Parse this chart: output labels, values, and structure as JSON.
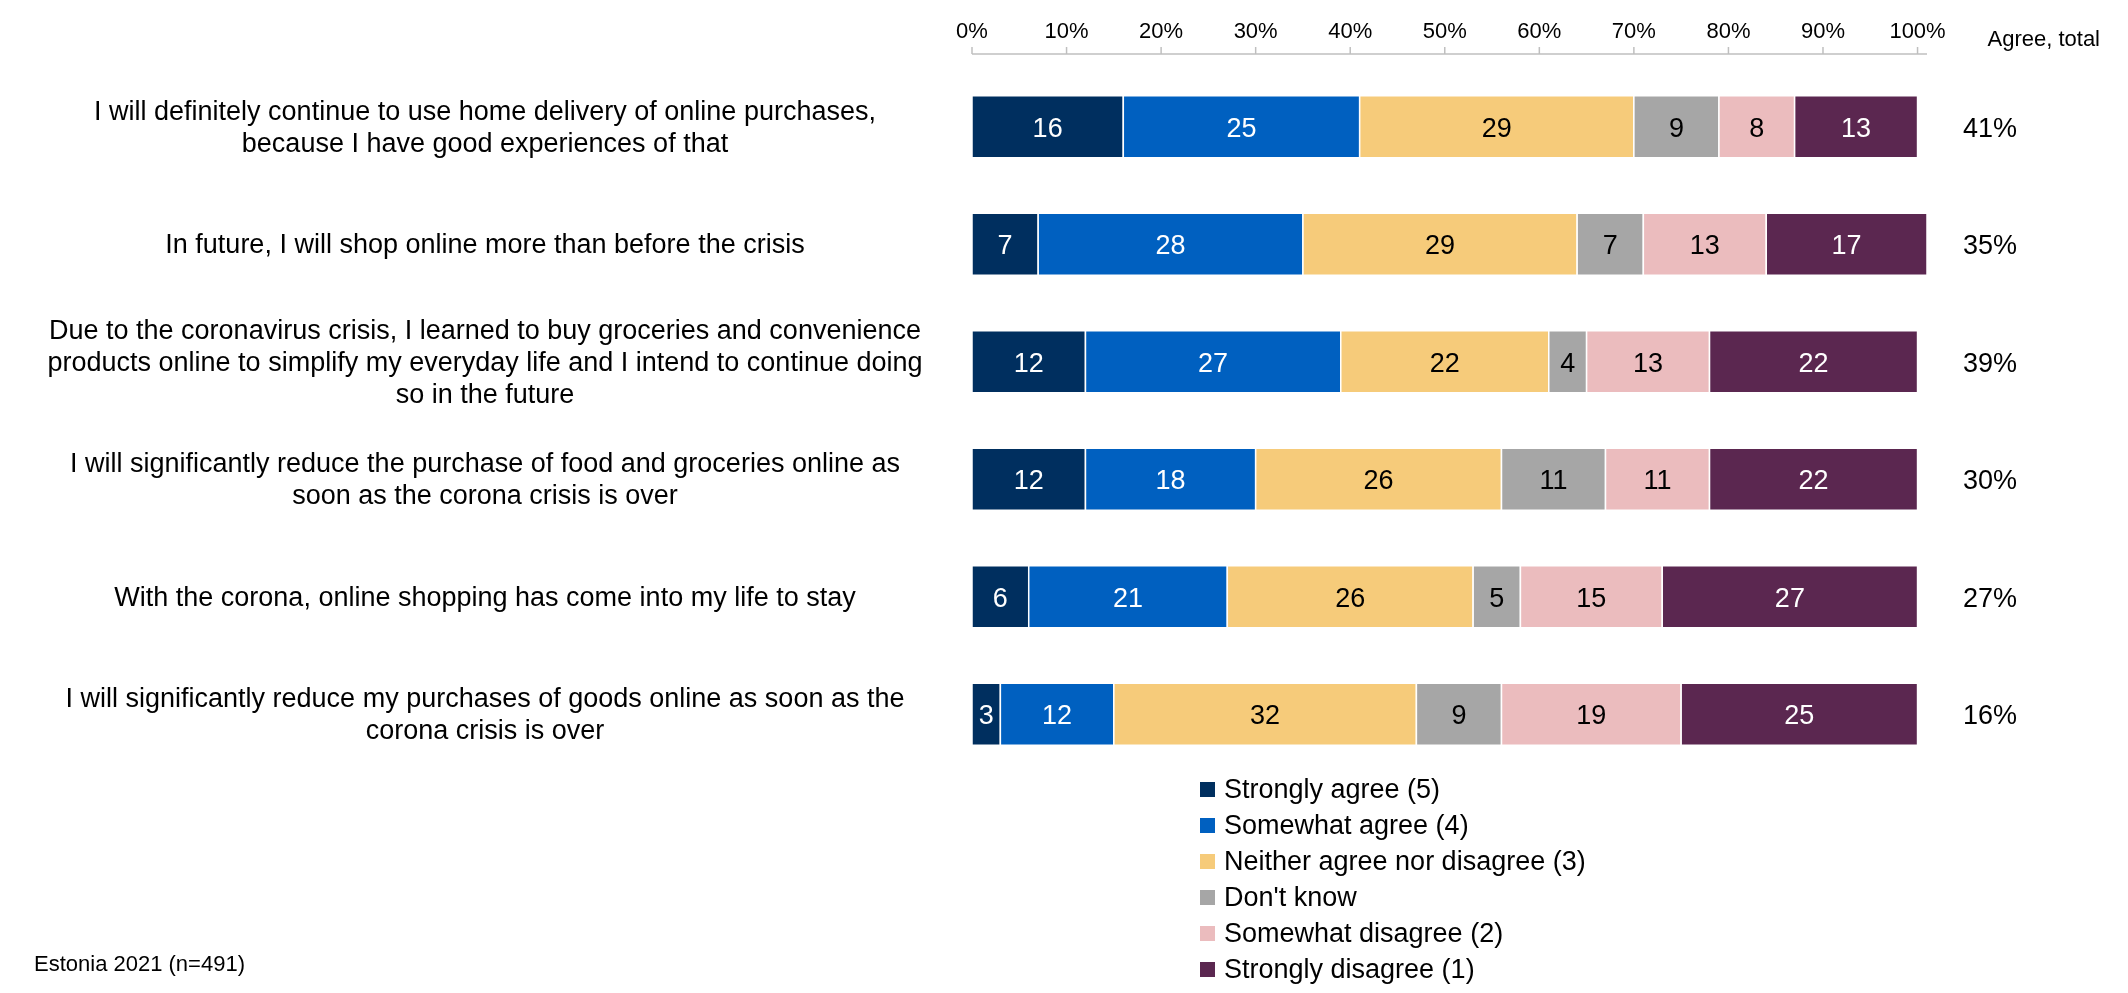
{
  "chart_data": {
    "type": "bar",
    "orientation": "horizontal",
    "stacked": true,
    "data_labels": true,
    "legend": "bottom",
    "grid": false,
    "categories": [
      "I will definitely continue to use home delivery of online purchases, because I have good experiences of that",
      "In future, I will shop online more than before the crisis",
      "Due to the coronavirus crisis, I learned to buy groceries and convenience products online to simplify my everyday life and I intend to continue doing so in the future",
      "I will significantly reduce the purchase of food and groceries online as soon as the corona crisis is over",
      "With the corona, online shopping has come into my life to stay",
      "I will significantly reduce my purchases of goods online as soon as the corona crisis is over"
    ],
    "xlim": [
      0,
      101
    ],
    "xticks": [
      {
        "value": 0,
        "label": "0%"
      },
      {
        "value": 10,
        "label": "10%"
      },
      {
        "value": 20,
        "label": "20%"
      },
      {
        "value": 30,
        "label": "30%"
      },
      {
        "value": 40,
        "label": "40%"
      },
      {
        "value": 50,
        "label": "50%"
      },
      {
        "value": 60,
        "label": "60%"
      },
      {
        "value": 70,
        "label": "70%"
      },
      {
        "value": 80,
        "label": "80%"
      },
      {
        "value": 90,
        "label": "90%"
      },
      {
        "value": 100,
        "label": "100%"
      }
    ],
    "series": [
      {
        "name": "Strongly agree (5)",
        "color": "#002f5f",
        "values": [
          16,
          7,
          12,
          12,
          6,
          3
        ]
      },
      {
        "name": "Somewhat agree (4)",
        "color": "#0060c0",
        "values": [
          25,
          28,
          27,
          18,
          21,
          12
        ]
      },
      {
        "name": "Neither agree nor disagree (3)",
        "color": "#f6cb7a",
        "values": [
          29,
          29,
          22,
          26,
          26,
          32
        ]
      },
      {
        "name": "Don't know",
        "color": "#a6a6a6",
        "values": [
          9,
          7,
          4,
          11,
          5,
          9
        ]
      },
      {
        "name": "Somewhat disagree (2)",
        "color": "#ebbcbe",
        "values": [
          8,
          13,
          13,
          11,
          15,
          19
        ]
      },
      {
        "name": "Strongly disagree (1)",
        "color": "#5b2750",
        "values": [
          13,
          17,
          22,
          22,
          27,
          25
        ]
      }
    ],
    "annotations": [
      "Agree, total",
      "41%",
      "35%",
      "39%",
      "30%",
      "27%",
      "16%",
      "Estonia 2021 (n=491)"
    ]
  }
}
